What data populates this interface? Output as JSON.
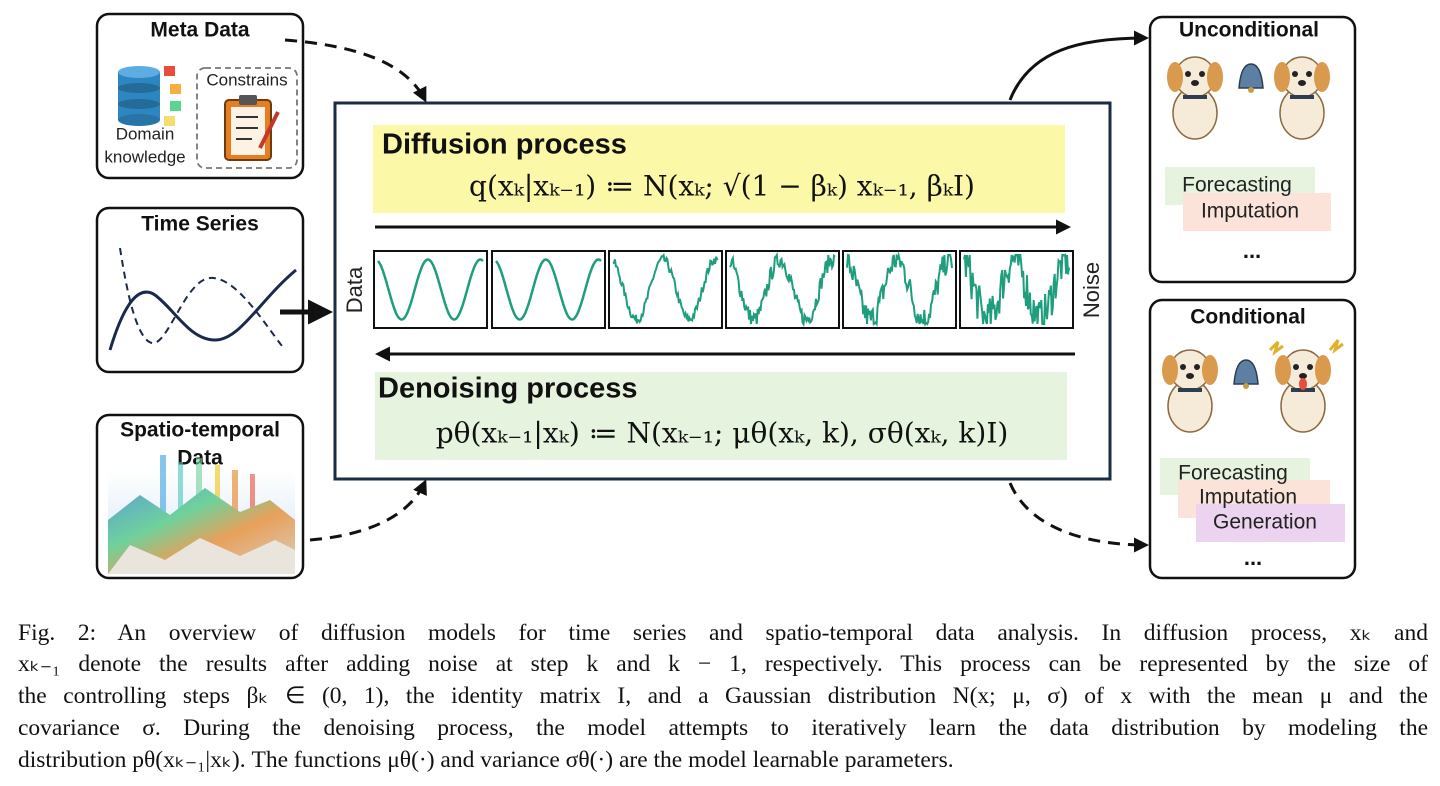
{
  "inputs": {
    "meta_data": {
      "title": "Meta Data",
      "constraints": "Constrains",
      "domain_knowledge": [
        "Domain",
        "knowledge"
      ]
    },
    "time_series": {
      "title": "Time Series"
    },
    "spatio_temporal": {
      "title": [
        "Spatio-temporal",
        "Data"
      ]
    }
  },
  "diffusion": {
    "title": "Diffusion process",
    "formula": "q(xₖ|xₖ₋₁) ≔ N(xₖ; √(1 − βₖ) xₖ₋₁, βₖI)"
  },
  "panels": {
    "left_label": "Data",
    "right_label": "Noise"
  },
  "denoising": {
    "title": "Denoising process",
    "formula": "pθ(xₖ₋₁|xₖ) ≔ N(xₖ₋₁; μθ(xₖ, k), σθ(xₖ, k)I)"
  },
  "outputs": {
    "unconditional": {
      "title": "Unconditional",
      "tasks": [
        "Forecasting",
        "Imputation"
      ],
      "more": "..."
    },
    "conditional": {
      "title": "Conditional",
      "tasks": [
        "Forecasting",
        "Imputation",
        "Generation"
      ],
      "more": "..."
    }
  },
  "caption": {
    "lines": [
      "Fig. 2: An overview of diffusion models for time series and spatio-temporal data analysis. In diffusion process, xₖ and",
      "xₖ₋₁ denote the results after adding noise at step k and k − 1, respectively. This process can be represented by the size of",
      "the controlling steps βₖ ∈ (0, 1), the identity matrix I, and a Gaussian distribution N(x; μ, σ) of x with the mean μ and the",
      "covariance σ. During the denoising process, the model attempts to iteratively learn the data distribution by modeling the",
      "distribution pθ(xₖ₋₁|xₖ). The functions μθ(·) and variance σθ(·) are the model learnable parameters."
    ]
  }
}
